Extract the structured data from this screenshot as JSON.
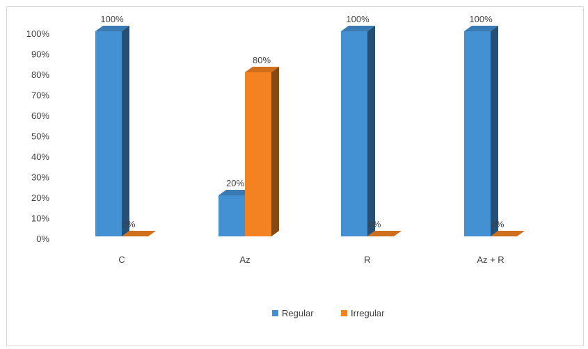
{
  "chart_data": {
    "type": "bar",
    "categories": [
      "C",
      "Az",
      "R",
      "Az + R"
    ],
    "series": [
      {
        "name": "Regular",
        "values": [
          100,
          20,
          100,
          100
        ],
        "color": "#4390d2"
      },
      {
        "name": "Irregular",
        "values": [
          0,
          80,
          0,
          0
        ],
        "color": "#f58220"
      }
    ],
    "data_labels": {
      "Regular": [
        "100%",
        "20%",
        "100%",
        "100%"
      ],
      "Irregular": [
        "0%",
        "80%",
        "0%",
        "0%"
      ]
    },
    "yticks": [
      "0%",
      "10%",
      "20%",
      "30%",
      "40%",
      "50%",
      "60%",
      "70%",
      "80%",
      "90%",
      "100%"
    ],
    "ylim": [
      0,
      100
    ],
    "grid": false,
    "three_d": true,
    "legend_position": "bottom",
    "title": "",
    "xlabel": "",
    "ylabel": ""
  }
}
